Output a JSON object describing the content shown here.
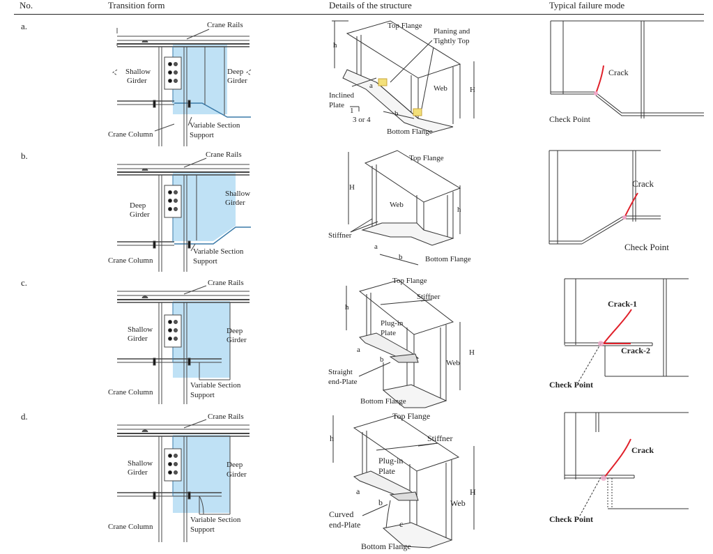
{
  "headers": {
    "no": "No.",
    "transition": "Transition form",
    "details": "Details of the structure",
    "failure": "Typical failure mode"
  },
  "rows": [
    {
      "no": "a.",
      "t": {
        "rails": "Crane  Rails",
        "left1": "Shallow",
        "left2": "Girder",
        "right1": "Deep",
        "right2": "Girder",
        "column": "Crane Column",
        "support1": "Variable Section",
        "support2": "Support"
      },
      "d": {
        "top": "Top Flange",
        "plan1": "Planing and",
        "plan2": "Tightly Top",
        "h": "h",
        "H": "H",
        "a": "a",
        "b": "b",
        "web": "Web",
        "incl1": "Inclined",
        "incl2": "Plate",
        "slope1": "1",
        "slope2": "3 or 4",
        "bottom": "Bottom Flange"
      },
      "f": {
        "crack": "Crack",
        "check": "Check Point"
      }
    },
    {
      "no": "b.",
      "t": {
        "rails": "Crane  Rails",
        "left1": "Deep",
        "left2": "Girder",
        "right1": "Shallow",
        "right2": "Girder",
        "column": "Crane Column",
        "support1": "Variable Section",
        "support2": "Support"
      },
      "d": {
        "top": "Top Flange",
        "H": "H",
        "h": "h",
        "web": "Web",
        "stiff": "Stiffner",
        "a": "a",
        "b": "b",
        "bottom": "Bottom Flange"
      },
      "f": {
        "crack": "Crack",
        "check": "Check Point"
      }
    },
    {
      "no": "c.",
      "t": {
        "rails": "Crane  Rails",
        "left1": "Shallow",
        "left2": "Girder",
        "right1": "Deep",
        "right2": "Girder",
        "column": "Crane Column",
        "support1": "Variable Section",
        "support2": "Support"
      },
      "d": {
        "top": "Top Flange",
        "stiff": "Stiffner",
        "h": "h",
        "plug1": "Plug-in",
        "plug2": "Plate",
        "a": "a",
        "b": "b",
        "H": "H",
        "web": "Web",
        "end1": "Straight",
        "end2": "end-Plate",
        "bottom": "Bottom Flange"
      },
      "f": {
        "crack1": "Crack-1",
        "crack2": "Crack-2",
        "check": "Check Point"
      }
    },
    {
      "no": "d.",
      "t": {
        "rails": "Crane  Rails",
        "left1": "Shallow",
        "left2": "Girder",
        "right1": "Deep",
        "right2": "Girder",
        "column": "Crane Column",
        "support1": "Variable Section",
        "support2": "Support"
      },
      "d": {
        "top": "Top Flange",
        "stiff": "Stiffner",
        "h": "h",
        "plug1": "Plug-in",
        "plug2": "Plate",
        "a": "a",
        "b": "b",
        "c": "c",
        "H": "H",
        "web": "Web",
        "end1": "Curved",
        "end2": "end-Plate",
        "bottom": "Bottom Flange"
      },
      "f": {
        "crack": "Crack",
        "check": "Check Point"
      }
    }
  ],
  "colors": {
    "highlight": "#bfe1f5",
    "highlight_edge": "#5aa9d6",
    "crack": "#e0202a",
    "weld": "#f3e07a"
  }
}
